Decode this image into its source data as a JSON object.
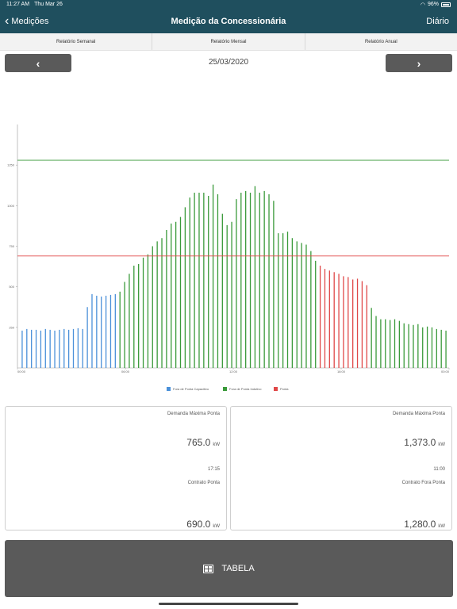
{
  "status_bar": {
    "time": "11:27 AM",
    "date": "Thu Mar 26",
    "battery": "96%"
  },
  "nav": {
    "back_label": "Medições",
    "title": "Medição da Concessionária",
    "right_label": "Diário"
  },
  "segments": [
    "Relatório Semanal",
    "Relatório Mensal",
    "Relatório Anual"
  ],
  "date_nav": {
    "date": "25/03/2020"
  },
  "legend": [
    {
      "label": "Fora de Ponta Capacitivo",
      "color": "#4a90d9"
    },
    {
      "label": "Fora de Ponta Indutivo",
      "color": "#3a9a3a"
    },
    {
      "label": "Ponta",
      "color": "#e04848"
    }
  ],
  "chart_data": {
    "type": "bar",
    "title": "",
    "xlabel": "",
    "ylabel": "",
    "ylim": [
      0,
      1500
    ],
    "yticks": [
      250,
      500,
      750,
      1000,
      1250
    ],
    "ytick_labels": [
      "250",
      "500",
      "750",
      "1000",
      "1250"
    ],
    "xtick_labels": [
      "00:00",
      "06:00",
      "12:00",
      "18:00",
      "00:00"
    ],
    "reference_lines": [
      {
        "value": 1280,
        "color": "#3a9a3a"
      },
      {
        "value": 690,
        "color": "#e04848"
      }
    ],
    "grid": false,
    "legend_position": "bottom",
    "series": [
      {
        "type": "Fora de Ponta Capacitivo",
        "values": [
          230,
          240,
          235,
          235,
          230,
          240,
          235,
          230,
          235,
          240,
          235,
          240,
          245,
          240,
          375,
          455,
          445,
          440,
          445,
          450,
          455
        ]
      },
      {
        "type": "Fora de Ponta Indutivo",
        "values": [
          470,
          530,
          580,
          630,
          640,
          680,
          700,
          750,
          780,
          800,
          850,
          890,
          900,
          930,
          990,
          1050,
          1080,
          1080,
          1080,
          1060,
          1130,
          1070,
          950,
          880,
          900,
          1040,
          1080,
          1090,
          1080,
          1120,
          1080,
          1090,
          1070,
          1030,
          830,
          830,
          840,
          800,
          780,
          770,
          760,
          720,
          660
        ]
      },
      {
        "type": "Ponta",
        "values": [
          630,
          610,
          600,
          590,
          580,
          565,
          560,
          545,
          550,
          535,
          510
        ]
      },
      {
        "type": "Fora de Ponta Indutivo",
        "values": [
          370,
          320,
          300,
          300,
          295,
          300,
          290,
          275,
          270,
          265,
          270,
          250,
          255,
          250,
          240,
          235,
          230
        ]
      }
    ]
  },
  "cards": [
    {
      "demand_label": "Demanda Máxima Ponta",
      "demand_value": "765.0",
      "unit": "kW",
      "time": "17:15",
      "contract_label": "Contrato Ponta",
      "contract_value": "690.0"
    },
    {
      "demand_label": "Demanda Máxima Ponta",
      "demand_value": "1,373.0",
      "unit": "kW",
      "time": "11:00",
      "contract_label": "Contrato Fora Ponta",
      "contract_value": "1,280.0"
    }
  ],
  "table_button": {
    "label": "TABELA",
    "icon": "table-icon"
  }
}
